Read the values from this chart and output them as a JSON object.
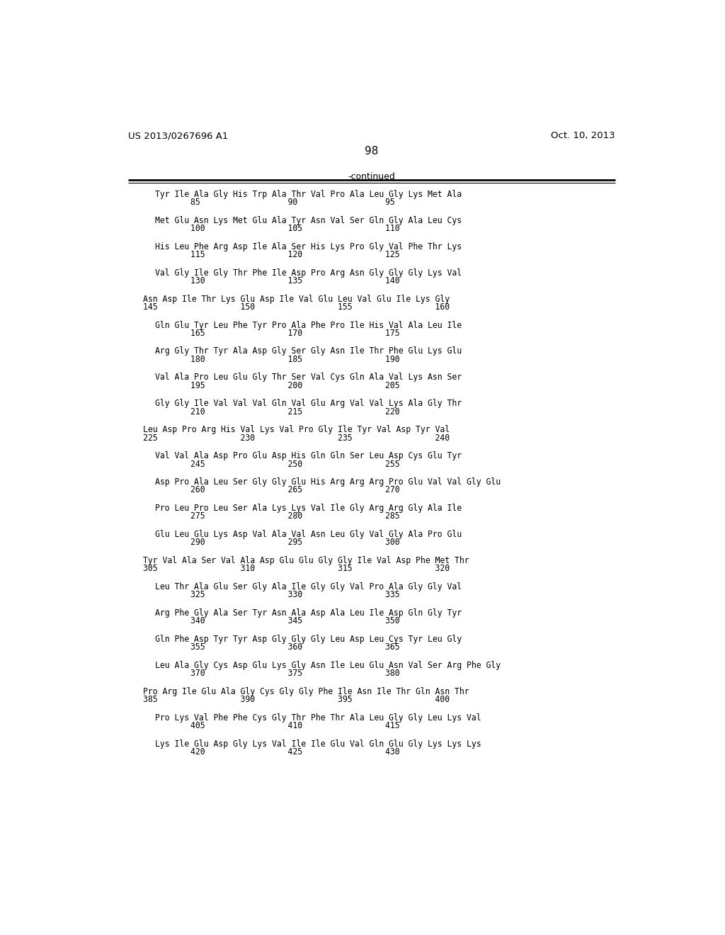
{
  "header_left": "US 2013/0267696 A1",
  "header_right": "Oct. 10, 2013",
  "page_number": "98",
  "continued_label": "-continued",
  "background_color": "#ffffff",
  "text_color": "#000000",
  "seq_blocks": [
    {
      "seq": "Tyr Ile Ala Gly His Trp Ala Thr Val Pro Ala Leu Gly Lys Met Ala",
      "num": "85                  90                  95",
      "wide": true
    },
    {
      "seq": "Met Glu Asn Lys Met Glu Ala Tyr Asn Val Ser Gln Gly Ala Leu Cys",
      "num": "100                 105                 110",
      "wide": true
    },
    {
      "seq": "His Leu Phe Arg Asp Ile Ala Ser His Lys Pro Gly Val Phe Thr Lys",
      "num": "115                 120                 125",
      "wide": true
    },
    {
      "seq": "Val Gly Ile Gly Thr Phe Ile Asp Pro Arg Asn Gly Gly Gly Lys Val",
      "num": "130                 135                 140",
      "wide": true
    },
    {
      "seq": "Asn Asp Ile Thr Lys Glu Asp Ile Val Glu Leu Val Glu Ile Lys Gly",
      "num": "145                 150                 155                 160",
      "wide": false
    },
    {
      "seq": "Gln Glu Tyr Leu Phe Tyr Pro Ala Phe Pro Ile His Val Ala Leu Ile",
      "num": "165                 170                 175",
      "wide": true
    },
    {
      "seq": "Arg Gly Thr Tyr Ala Asp Gly Ser Gly Asn Ile Thr Phe Glu Lys Glu",
      "num": "180                 185                 190",
      "wide": true
    },
    {
      "seq": "Val Ala Pro Leu Glu Gly Thr Ser Val Cys Gln Ala Val Lys Asn Ser",
      "num": "195                 200                 205",
      "wide": true
    },
    {
      "seq": "Gly Gly Ile Val Val Val Gln Val Glu Arg Val Val Lys Ala Gly Thr",
      "num": "210                 215                 220",
      "wide": true
    },
    {
      "seq": "Leu Asp Pro Arg His Val Lys Val Pro Gly Ile Tyr Val Asp Tyr Val",
      "num": "225                 230                 235                 240",
      "wide": false
    },
    {
      "seq": "Val Val Ala Asp Pro Glu Asp His Gln Gln Ser Leu Asp Cys Glu Tyr",
      "num": "245                 250                 255",
      "wide": true
    },
    {
      "seq": "Asp Pro Ala Leu Ser Gly Gly Glu His Arg Arg Arg Pro Glu Val Val Gly Glu",
      "num": "260                 265                 270",
      "wide": true
    },
    {
      "seq": "Pro Leu Pro Leu Ser Ala Lys Lys Val Ile Gly Arg Arg Gly Ala Ile",
      "num": "275                 280                 285",
      "wide": true
    },
    {
      "seq": "Glu Leu Glu Lys Asp Val Ala Val Asn Leu Gly Val Gly Ala Pro Glu",
      "num": "290                 295                 300",
      "wide": true
    },
    {
      "seq": "Tyr Val Ala Ser Val Ala Asp Glu Glu Gly Gly Ile Val Asp Phe Met Thr",
      "num": "305                 310                 315                 320",
      "wide": false
    },
    {
      "seq": "Leu Thr Ala Glu Ser Gly Ala Ile Gly Gly Val Pro Ala Gly Gly Val",
      "num": "325                 330                 335",
      "wide": true
    },
    {
      "seq": "Arg Phe Gly Ala Ser Tyr Asn Ala Asp Ala Leu Ile Asp Gln Gly Tyr",
      "num": "340                 345                 350",
      "wide": true
    },
    {
      "seq": "Gln Phe Asp Tyr Tyr Asp Gly Gly Gly Leu Asp Leu Cys Tyr Leu Gly",
      "num": "355                 360                 365",
      "wide": true
    },
    {
      "seq": "Leu Ala Gly Cys Asp Glu Lys Gly Asn Ile Leu Glu Asn Val Ser Arg Phe Gly",
      "num": "370                 375                 380",
      "wide": true
    },
    {
      "seq": "Pro Arg Ile Glu Ala Gly Cys Gly Gly Phe Ile Asn Ile Thr Gln Asn Thr",
      "num": "385                 390                 395                 400",
      "wide": false
    },
    {
      "seq": "Pro Lys Val Phe Phe Cys Gly Thr Phe Thr Ala Leu Gly Gly Leu Lys Val",
      "num": "405                 410                 415",
      "wide": true
    },
    {
      "seq": "Lys Ile Glu Asp Gly Lys Val Ile Ile Glu Val Gln Glu Gly Lys Lys Lys",
      "num": "420                 425                 430",
      "wide": true
    }
  ]
}
